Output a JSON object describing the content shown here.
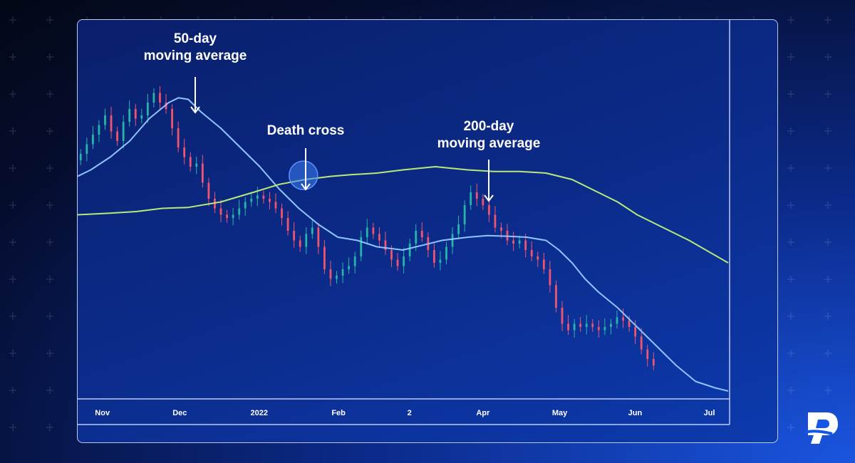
{
  "chart_data": {
    "type": "candlestick",
    "title": "",
    "xlabel": "",
    "ylabel": "",
    "x_ticks": [
      "Nov",
      "Dec",
      "2022",
      "Feb",
      "2",
      "Apr",
      "May",
      "Jun",
      "Jul"
    ],
    "ylim": [
      0,
      100
    ],
    "grid": false,
    "series": [
      {
        "name": "50-day moving average",
        "color": "#8fc4ff",
        "x": [
          0,
          0.02,
          0.05,
          0.08,
          0.11,
          0.14,
          0.155,
          0.17,
          0.19,
          0.22,
          0.25,
          0.28,
          0.31,
          0.34,
          0.37,
          0.4,
          0.43,
          0.46,
          0.5,
          0.53,
          0.56,
          0.6,
          0.63,
          0.66,
          0.69,
          0.72,
          0.74,
          0.76,
          0.78,
          0.8,
          0.83,
          0.86,
          0.89,
          0.92,
          0.95,
          0.98,
          1.0
        ],
        "values": [
          69,
          71,
          75,
          80,
          87,
          92,
          93.5,
          93,
          89,
          84,
          78,
          72,
          65,
          59,
          54,
          50,
          49,
          47,
          46,
          47.5,
          49,
          50,
          50.5,
          50.3,
          50,
          49,
          46,
          42,
          37,
          33,
          28,
          22,
          16,
          10,
          5,
          3,
          2
        ]
      },
      {
        "name": "200-day moving average",
        "color": "#b8ea7a",
        "x": [
          0,
          0.05,
          0.09,
          0.13,
          0.17,
          0.22,
          0.27,
          0.31,
          0.35,
          0.39,
          0.42,
          0.46,
          0.5,
          0.55,
          0.6,
          0.64,
          0.68,
          0.72,
          0.76,
          0.79,
          0.83,
          0.86,
          0.9,
          0.94,
          1.0
        ],
        "values": [
          57,
          57.5,
          58,
          59,
          59.3,
          61,
          64,
          66.5,
          68,
          69,
          69.5,
          70,
          71,
          72,
          71,
          70.5,
          70.5,
          70,
          68,
          65,
          61,
          57,
          53,
          49,
          42
        ]
      }
    ],
    "candles_close": [
      76,
      79,
      82,
      85,
      88,
      83,
      80,
      86,
      90,
      87,
      88,
      92,
      95,
      92,
      90,
      84,
      78,
      75,
      72,
      73,
      67,
      62,
      59,
      57,
      56,
      57,
      59,
      61,
      62,
      63,
      62,
      61,
      59,
      56,
      52,
      49,
      47,
      51,
      53,
      47,
      40,
      37,
      38,
      40,
      41,
      44,
      50,
      53,
      51,
      49,
      46,
      43,
      41,
      44,
      48,
      52,
      50,
      46,
      42,
      43,
      47,
      51,
      54,
      60,
      64,
      62,
      60,
      57,
      53,
      52,
      49,
      48,
      49,
      46,
      44,
      43,
      40,
      35,
      28,
      23,
      21,
      23,
      22,
      23,
      22,
      21,
      22,
      23,
      25,
      24,
      22,
      19,
      15,
      12,
      10
    ],
    "annotations": [
      {
        "text_lines": [
          "50-day",
          "moving average"
        ]
      },
      {
        "text_lines": [
          "Death cross"
        ]
      },
      {
        "text_lines": [
          "200-day",
          "moving average"
        ]
      }
    ]
  },
  "colors": {
    "up_candle": "#26b6a8",
    "down_candle": "#f0556e",
    "cross_circle": "#3d7df0"
  },
  "logo_icon": "pepperstone-p-logo-icon"
}
